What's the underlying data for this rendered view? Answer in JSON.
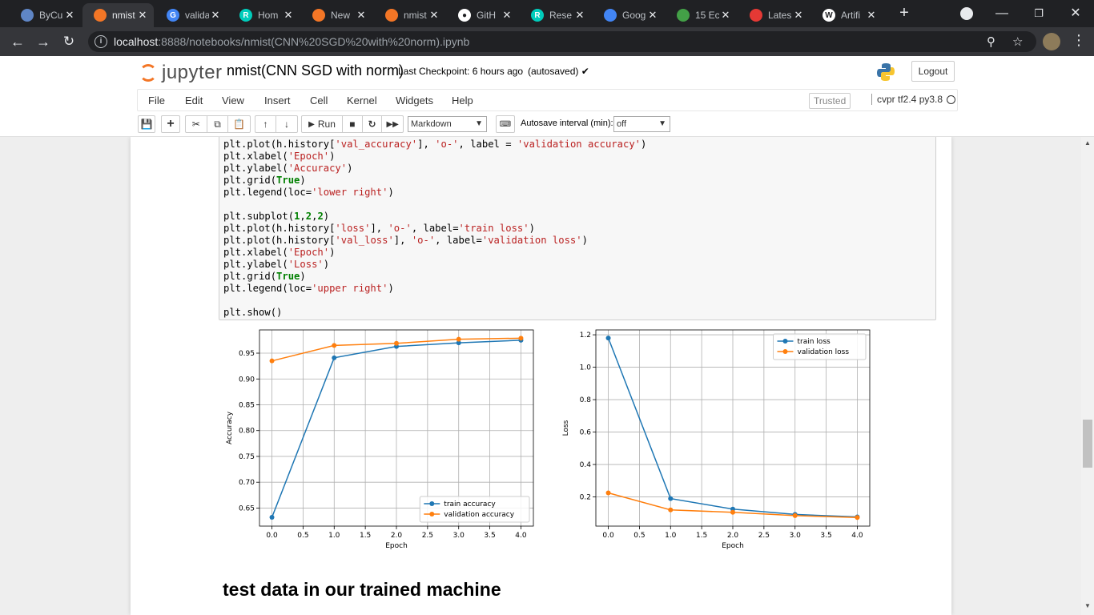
{
  "browser": {
    "tabs": [
      {
        "title": "ByCu",
        "icon": "shield-tab-icon",
        "color": "#5f86c6"
      },
      {
        "title": "nmist",
        "icon": "jupyter-tab-icon",
        "color": "#f37626"
      },
      {
        "title": "valida",
        "icon": "google-tab-icon",
        "color": "#4285f4"
      },
      {
        "title": "Hom",
        "icon": "researchgate-tab-icon",
        "color": "#00ccbb"
      },
      {
        "title": "New",
        "icon": "jupyter-tab-icon",
        "color": "#f37626"
      },
      {
        "title": "nmist",
        "icon": "jupyter-tab-icon",
        "color": "#f37626"
      },
      {
        "title": "GitH",
        "icon": "github-tab-icon",
        "color": "#ffffff"
      },
      {
        "title": "Rese",
        "icon": "researchgate-tab-icon",
        "color": "#00ccbb"
      },
      {
        "title": "Goog",
        "icon": "scholar-tab-icon",
        "color": "#4285f4"
      },
      {
        "title": "15 Ec",
        "icon": "shield-tab-icon",
        "color": "#43a047"
      },
      {
        "title": "Lates",
        "icon": "zigzag-tab-icon",
        "color": "#e53935"
      },
      {
        "title": "Artifi",
        "icon": "wikipedia-tab-icon",
        "color": "#ffffff"
      }
    ],
    "url_host": "localhost",
    "url_rest": ":8888/notebooks/nmist(CNN%20SGD%20with%20norm).ipynb"
  },
  "jupyter": {
    "logo_text": "jupyter",
    "notebook_title": "nmist(CNN SGD with norm)",
    "checkpoint": "Last Checkpoint: 6 hours ago",
    "autosaved": "(autosaved)",
    "logout": "Logout",
    "menu": [
      "File",
      "Edit",
      "View",
      "Insert",
      "Cell",
      "Kernel",
      "Widgets",
      "Help"
    ],
    "trusted": "Trusted",
    "kernel": "cvpr tf2.4 py3.8",
    "run_label": "Run",
    "cell_type": "Markdown",
    "autosave_label": "Autosave interval (min):",
    "autosave_value": "off"
  },
  "code_lines": [
    [
      [
        "plt.plot(h.history[",
        ""
      ],
      [
        "'val_accuracy'",
        "s"
      ],
      [
        "], ",
        ""
      ],
      [
        "'o-'",
        "s"
      ],
      [
        ", label = ",
        ""
      ],
      [
        "'validation accuracy'",
        "s"
      ],
      [
        ")",
        ""
      ]
    ],
    [
      [
        "plt.xlabel(",
        ""
      ],
      [
        "'Epoch'",
        "s"
      ],
      [
        ")",
        ""
      ]
    ],
    [
      [
        "plt.ylabel(",
        ""
      ],
      [
        "'Accuracy'",
        "s"
      ],
      [
        ")",
        ""
      ]
    ],
    [
      [
        "plt.grid(",
        ""
      ],
      [
        "True",
        "k"
      ],
      [
        ")",
        ""
      ]
    ],
    [
      [
        "plt.legend(loc=",
        ""
      ],
      [
        "'lower right'",
        "s"
      ],
      [
        ")",
        ""
      ]
    ],
    [],
    [
      [
        "plt.subplot(",
        ""
      ],
      [
        "1",
        "k"
      ],
      [
        ",",
        ""
      ],
      [
        "2",
        "k"
      ],
      [
        ",",
        ""
      ],
      [
        "2",
        "k"
      ],
      [
        ")",
        ""
      ]
    ],
    [
      [
        "plt.plot(h.history[",
        ""
      ],
      [
        "'loss'",
        "s"
      ],
      [
        "], ",
        ""
      ],
      [
        "'o-'",
        "s"
      ],
      [
        ", label=",
        ""
      ],
      [
        "'train loss'",
        "s"
      ],
      [
        ")",
        ""
      ]
    ],
    [
      [
        "plt.plot(h.history[",
        ""
      ],
      [
        "'val_loss'",
        "s"
      ],
      [
        "], ",
        ""
      ],
      [
        "'o-'",
        "s"
      ],
      [
        ", label=",
        ""
      ],
      [
        "'validation loss'",
        "s"
      ],
      [
        ")",
        ""
      ]
    ],
    [
      [
        "plt.xlabel(",
        ""
      ],
      [
        "'Epoch'",
        "s"
      ],
      [
        ")",
        ""
      ]
    ],
    [
      [
        "plt.ylabel(",
        ""
      ],
      [
        "'Loss'",
        "s"
      ],
      [
        ")",
        ""
      ]
    ],
    [
      [
        "plt.grid(",
        ""
      ],
      [
        "True",
        "k"
      ],
      [
        ")",
        ""
      ]
    ],
    [
      [
        "plt.legend(loc=",
        ""
      ],
      [
        "'upper right'",
        "s"
      ],
      [
        ")",
        ""
      ]
    ],
    [],
    [
      [
        "plt.show()",
        ""
      ]
    ]
  ],
  "chart_data": [
    {
      "type": "line",
      "x": [
        0,
        1,
        2,
        3,
        4
      ],
      "series": [
        {
          "name": "train accuracy",
          "values": [
            0.632,
            0.941,
            0.963,
            0.97,
            0.975
          ],
          "color": "#1f77b4"
        },
        {
          "name": "validation accuracy",
          "values": [
            0.935,
            0.965,
            0.969,
            0.977,
            0.979
          ],
          "color": "#ff7f0e"
        }
      ],
      "xlabel": "Epoch",
      "ylabel": "Accuracy",
      "xlim": [
        -0.2,
        4.2
      ],
      "ylim": [
        0.615,
        0.995
      ],
      "xticks": [
        "0.0",
        "0.5",
        "1.0",
        "1.5",
        "2.0",
        "2.5",
        "3.0",
        "3.5",
        "4.0"
      ],
      "yticks": [
        "0.65",
        "0.70",
        "0.75",
        "0.80",
        "0.85",
        "0.90",
        "0.95"
      ],
      "grid": true,
      "legend": "lower right"
    },
    {
      "type": "line",
      "x": [
        0,
        1,
        2,
        3,
        4
      ],
      "series": [
        {
          "name": "train loss",
          "values": [
            1.18,
            0.19,
            0.125,
            0.092,
            0.077
          ],
          "color": "#1f77b4"
        },
        {
          "name": "validation loss",
          "values": [
            0.225,
            0.12,
            0.105,
            0.085,
            0.073
          ],
          "color": "#ff7f0e"
        }
      ],
      "xlabel": "Epoch",
      "ylabel": "Loss",
      "xlim": [
        -0.2,
        4.2
      ],
      "ylim": [
        0.02,
        1.23
      ],
      "xticks": [
        "0.0",
        "0.5",
        "1.0",
        "1.5",
        "2.0",
        "2.5",
        "3.0",
        "3.5",
        "4.0"
      ],
      "yticks": [
        "0.2",
        "0.4",
        "0.6",
        "0.8",
        "1.0",
        "1.2"
      ],
      "grid": true,
      "legend": "upper right"
    }
  ],
  "markdown_heading": "test data in our trained machine"
}
